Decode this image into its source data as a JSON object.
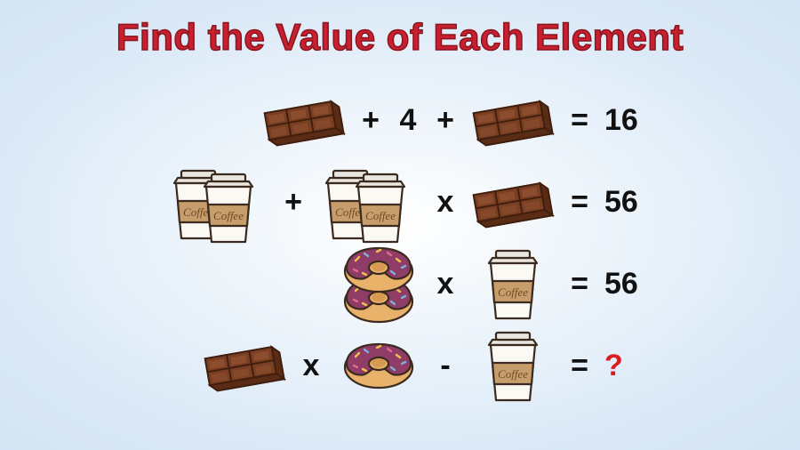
{
  "title": "Find the Value of Each Element",
  "colors": {
    "title": "#c9202f",
    "title_stroke": "#8a1520",
    "text": "#111111",
    "question_mark": "#d81e1e",
    "background_inner": "#ffffff",
    "background_outer": "#d4e4f4",
    "chocolate_top": "#7a3f22",
    "chocolate_side": "#5a2c16",
    "chocolate_highlight": "#9a5a38",
    "chocolate_line": "#3f1e0e",
    "cup_body": "#fbf9f4",
    "cup_sleeve": "#c79d6c",
    "cup_lid": "#e9e6df",
    "cup_outline": "#3a2a1f",
    "cup_text": "#6d4a28",
    "donut_dough": "#e9b26a",
    "donut_icing": "#8f3d66",
    "donut_outline": "#3a2a1f",
    "sprinkle1": "#f0c24a",
    "sprinkle2": "#7bb0d8",
    "sprinkle3": "#e06a8a"
  },
  "typography": {
    "title_fontsize": 42,
    "title_weight": 900,
    "op_fontsize": 34,
    "op_weight": 900
  },
  "rows": [
    {
      "tokens": [
        {
          "type": "chocolate"
        },
        {
          "type": "op",
          "value": "+"
        },
        {
          "type": "num",
          "value": "4"
        },
        {
          "type": "op",
          "value": "+"
        },
        {
          "type": "chocolate"
        },
        {
          "type": "eq",
          "value": "="
        },
        {
          "type": "result",
          "value": "16"
        }
      ]
    },
    {
      "tokens": [
        {
          "type": "coffee_pair"
        },
        {
          "type": "op",
          "value": "+"
        },
        {
          "type": "coffee_pair"
        },
        {
          "type": "op",
          "value": "x"
        },
        {
          "type": "chocolate"
        },
        {
          "type": "eq",
          "value": "="
        },
        {
          "type": "result",
          "value": "56"
        }
      ]
    },
    {
      "tokens": [
        {
          "type": "donut_stack"
        },
        {
          "type": "op",
          "value": "x"
        },
        {
          "type": "coffee_single"
        },
        {
          "type": "eq",
          "value": "="
        },
        {
          "type": "result",
          "value": "56"
        }
      ]
    },
    {
      "tokens": [
        {
          "type": "chocolate"
        },
        {
          "type": "op",
          "value": "x"
        },
        {
          "type": "donut_single"
        },
        {
          "type": "op",
          "value": "-"
        },
        {
          "type": "coffee_single"
        },
        {
          "type": "eq",
          "value": "="
        },
        {
          "type": "result",
          "value": "?",
          "is_question": true
        }
      ]
    }
  ],
  "icons": {
    "coffee_label": "Coffee"
  }
}
